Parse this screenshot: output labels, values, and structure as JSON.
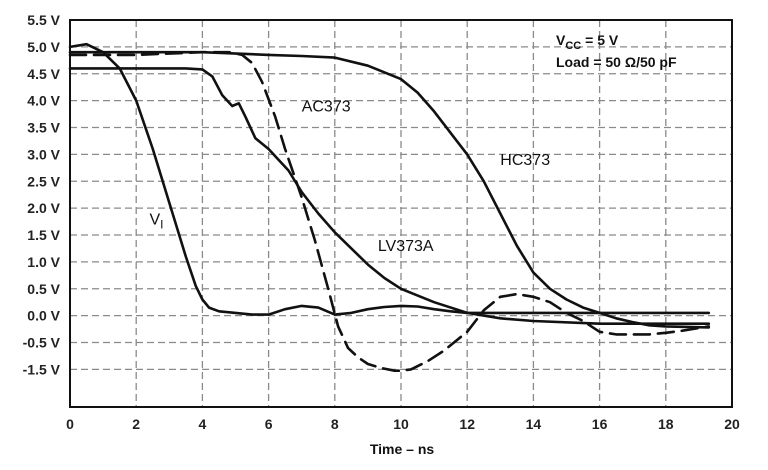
{
  "chart_data": {
    "type": "line",
    "xlabel": "Time – ns",
    "ylabel": "",
    "xlim": [
      0,
      20
    ],
    "ylim": [
      -2.0,
      5.5
    ],
    "grid": true,
    "x_ticks": [
      "0",
      "2",
      "4",
      "6",
      "8",
      "10",
      "12",
      "14",
      "16",
      "18",
      "20"
    ],
    "y_ticks": [
      "5.5 V",
      "5.0 V",
      "4.5 V",
      "4.0 V",
      "3.5 V",
      "3.0 V",
      "2.5 V",
      "2.0 V",
      "1.5 V",
      "1.0 V",
      "0.5 V",
      "0.0 V",
      "-0.5 V",
      "-1.5 V"
    ],
    "conditions": {
      "vcc": "VCC = 5 V",
      "vcc_base": "V",
      "vcc_sub": "CC",
      "vcc_rest": " = 5 V",
      "load": "Load = 50 Ω/50 pF"
    },
    "series": [
      {
        "name": "VI",
        "label_base": "V",
        "label_sub": "I",
        "dash": "solid",
        "x": [
          0,
          0.5,
          1.0,
          1.5,
          2.0,
          2.5,
          2.8,
          3.0,
          3.2,
          3.5,
          3.8,
          4.0,
          4.2,
          4.5,
          5.0,
          5.5,
          6.0,
          6.5,
          7.0,
          7.5,
          8.0,
          8.5,
          9.0,
          9.5,
          10.0,
          10.5,
          11.0,
          11.5,
          12.0,
          14.0,
          16.0,
          18.0,
          19.3
        ],
        "y": [
          5.0,
          5.05,
          4.9,
          4.6,
          4.0,
          3.1,
          2.5,
          2.1,
          1.7,
          1.1,
          0.55,
          0.3,
          0.15,
          0.08,
          0.05,
          0.02,
          0.02,
          0.12,
          0.18,
          0.15,
          0.02,
          0.05,
          0.12,
          0.16,
          0.18,
          0.17,
          0.12,
          0.08,
          0.05,
          0.05,
          0.05,
          0.05,
          0.05
        ]
      },
      {
        "name": "AC373",
        "dash": "dashed",
        "x": [
          0,
          2.0,
          4.0,
          4.8,
          5.2,
          5.5,
          5.8,
          6.2,
          6.5,
          7.0,
          7.4,
          7.8,
          8.1,
          8.4,
          8.7,
          9.0,
          9.4,
          9.8,
          10.0,
          10.3,
          10.8,
          11.3,
          12.0,
          12.5,
          13.0,
          13.5,
          14.0,
          14.5,
          15.0,
          15.5,
          16.0,
          16.5,
          17.0,
          17.5,
          18.0,
          18.5,
          19.3
        ],
        "y": [
          4.85,
          4.85,
          4.9,
          4.9,
          4.85,
          4.7,
          4.35,
          3.7,
          3.1,
          2.2,
          1.4,
          0.5,
          -0.2,
          -0.7,
          -1.05,
          -1.3,
          -1.45,
          -1.55,
          -1.55,
          -1.5,
          -1.2,
          -0.8,
          -0.3,
          0.1,
          0.35,
          0.4,
          0.35,
          0.25,
          0.05,
          -0.1,
          -0.3,
          -0.35,
          -0.35,
          -0.35,
          -0.32,
          -0.28,
          -0.2
        ]
      },
      {
        "name": "LV373A",
        "dash": "solid",
        "x": [
          0,
          2.0,
          3.5,
          4.0,
          4.3,
          4.6,
          4.9,
          5.1,
          5.3,
          5.6,
          6.0,
          6.3,
          6.6,
          7.0,
          7.5,
          8.0,
          8.5,
          9.0,
          9.5,
          10.0,
          11.0,
          12.0,
          13.0,
          14.0,
          16.0,
          18.0,
          19.3
        ],
        "y": [
          4.6,
          4.6,
          4.6,
          4.58,
          4.45,
          4.1,
          3.9,
          3.95,
          3.7,
          3.3,
          3.1,
          2.9,
          2.7,
          2.3,
          1.9,
          1.55,
          1.25,
          0.95,
          0.7,
          0.5,
          0.25,
          0.05,
          -0.05,
          -0.1,
          -0.15,
          -0.15,
          -0.15
        ]
      },
      {
        "name": "HC373",
        "dash": "solid",
        "x": [
          0,
          2.0,
          4.0,
          6.0,
          7.0,
          8.0,
          9.0,
          10.0,
          10.5,
          11.0,
          11.5,
          12.0,
          12.5,
          13.0,
          13.5,
          14.0,
          14.5,
          15.0,
          15.5,
          16.0,
          16.5,
          17.0,
          17.5,
          18.0,
          19.3
        ],
        "y": [
          4.9,
          4.9,
          4.9,
          4.85,
          4.83,
          4.8,
          4.65,
          4.4,
          4.15,
          3.8,
          3.4,
          3.0,
          2.5,
          1.9,
          1.3,
          0.8,
          0.5,
          0.3,
          0.15,
          0.05,
          -0.05,
          -0.12,
          -0.18,
          -0.2,
          -0.22
        ]
      }
    ],
    "annotations": [
      {
        "text": "AC373",
        "x": 7.0,
        "y": 3.8
      },
      {
        "text": "HC373",
        "x": 13.0,
        "y": 2.8
      },
      {
        "text": "LV373A",
        "x": 9.3,
        "y": 1.2
      },
      {
        "text": "VI",
        "x": 2.4,
        "y": 1.7
      }
    ]
  }
}
